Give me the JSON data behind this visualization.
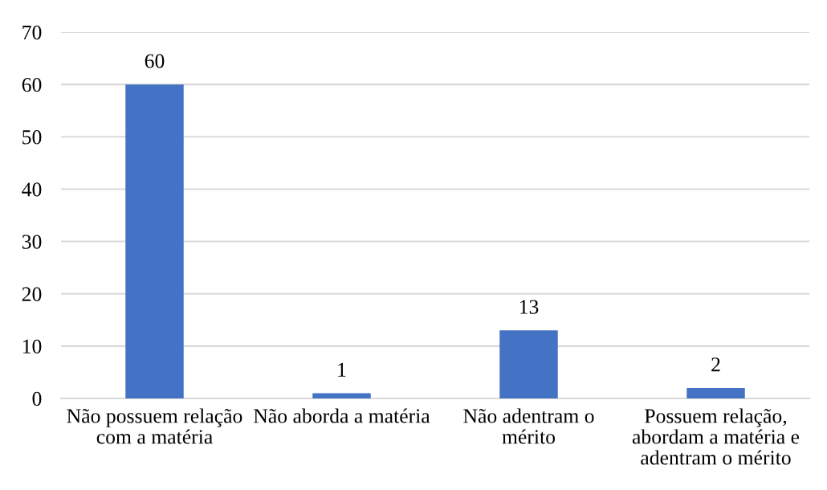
{
  "chart_data": {
    "type": "bar",
    "categories": [
      "Não possuem relação\ncom a matéria",
      "Não aborda a matéria",
      "Não adentram o\nmérito",
      "Possuem relação,\nabordam a matéria e\nadentram o mérito"
    ],
    "values": [
      60,
      1,
      13,
      2
    ],
    "color": "#4472c4",
    "ylim": [
      0,
      70
    ],
    "yticks": [
      0,
      10,
      20,
      30,
      40,
      50,
      60,
      70
    ],
    "grid": "y",
    "data_labels": true
  }
}
